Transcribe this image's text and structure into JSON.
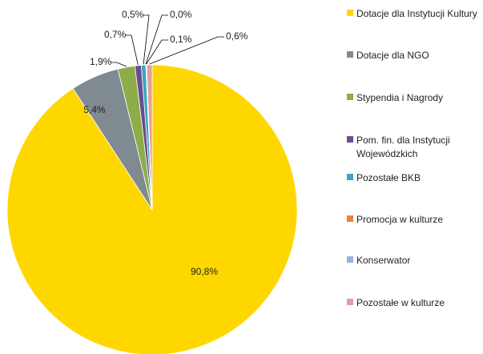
{
  "chart_data": {
    "type": "pie",
    "categories": [
      "Dotacje dla Instytucji Kultury",
      "Dotacje dla NGO",
      "Stypendia i Nagrody",
      "Pom. fin. dla Instytucji Wojewódzkich",
      "Pozostałe BKB",
      "Promocja w kulturze",
      "Konserwator",
      "Pozostałe w kulturze"
    ],
    "values": [
      90.8,
      5.4,
      1.9,
      0.7,
      0.5,
      0.0,
      0.1,
      0.6
    ],
    "value_labels": [
      "90,8%",
      "5,4%",
      "1,9%",
      "0,7%",
      "0,5%",
      "0,0%",
      "0,1%",
      "0,6%"
    ],
    "colors": [
      "#ffd700",
      "#7f8a91",
      "#8cad48",
      "#6b4c8e",
      "#3aa6bf",
      "#e8823a",
      "#93b3da",
      "#e49c9c"
    ],
    "legend": "right"
  }
}
